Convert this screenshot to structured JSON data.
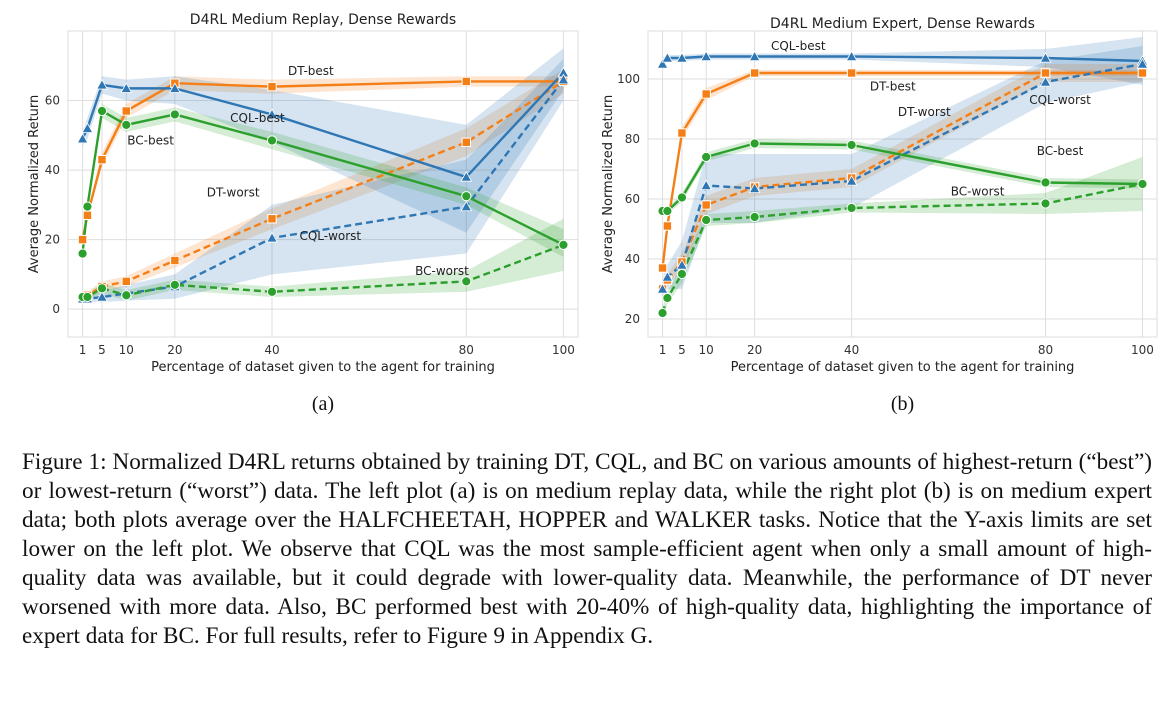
{
  "figure": {
    "caption": "Figure 1: Normalized D4RL returns obtained by training DT, CQL, and BC on various amounts of highest-return (“best”) or lowest-return (“worst”) data. The left plot (a) is on medium replay data, while the right plot (b) is on medium expert data; both plots average over the HALFCHEETAH, HOPPER and WALKER tasks. Notice that the Y-axis limits are set lower on the left plot. We observe that CQL was the most sample-efficient agent when only a small amount of high-quality data was available, but it could degrade with lower-quality data. Meanwhile, the performance of DT never worsened with more data. Also, BC performed best with 20-40% of high-quality data, highlighting the importance of expert data for BC. For full results, refer to Figure 9 in Appendix G."
  },
  "colors": {
    "DT": "#f47f17",
    "CQL": "#2f77b4",
    "BC": "#2ca02c"
  },
  "chart_data": [
    {
      "type": "line",
      "panel_label": "(a)",
      "title": "D4RL Medium Replay, Dense Rewards",
      "xlabel": "Percentage of dataset given to the agent for training",
      "ylabel": "Average Normalized Return",
      "x": [
        1,
        2,
        5,
        10,
        20,
        40,
        80,
        100
      ],
      "xticks": [
        1,
        5,
        10,
        20,
        40,
        80,
        100
      ],
      "yticks": [
        0,
        20,
        40,
        60
      ],
      "xlim": [
        -2,
        103
      ],
      "ylim": [
        -8,
        80
      ],
      "grid": true,
      "series": [
        {
          "name": "DT-best",
          "agent": "DT",
          "dashed": false,
          "marker": "square",
          "values": [
            20,
            27,
            43,
            57,
            65,
            64,
            65.5,
            65.5
          ],
          "lower": [
            19,
            26,
            41,
            55,
            63,
            62,
            64,
            64
          ],
          "upper": [
            21,
            28,
            45,
            59,
            67,
            66,
            67,
            67
          ]
        },
        {
          "name": "DT-worst",
          "agent": "DT",
          "dashed": true,
          "marker": "square",
          "values": [
            3,
            4,
            6.5,
            8,
            14,
            26,
            48,
            65.5
          ],
          "lower": [
            2,
            3,
            5,
            6.5,
            12,
            23,
            44,
            62
          ],
          "upper": [
            4,
            5,
            8,
            9.5,
            16,
            29,
            52,
            69
          ]
        },
        {
          "name": "CQL-best",
          "agent": "CQL",
          "dashed": false,
          "marker": "triangle",
          "values": [
            49,
            52,
            64.5,
            63.5,
            63.5,
            56,
            38,
            68
          ],
          "lower": [
            47,
            49,
            62,
            60,
            59,
            48,
            22,
            63
          ],
          "upper": [
            51,
            55,
            67,
            66,
            67,
            63,
            53,
            75
          ]
        },
        {
          "name": "CQL-worst",
          "agent": "CQL",
          "dashed": true,
          "marker": "triangle",
          "values": [
            3,
            3,
            3.5,
            4.5,
            6.5,
            20.5,
            29.5,
            66
          ],
          "lower": [
            2,
            2,
            2,
            2.5,
            3,
            10,
            16,
            60
          ],
          "upper": [
            4,
            4,
            5,
            7,
            10,
            30,
            43,
            72
          ]
        },
        {
          "name": "BC-best",
          "agent": "BC",
          "dashed": false,
          "marker": "circle",
          "values": [
            16,
            29.5,
            57,
            53,
            56,
            48.5,
            32.5,
            18.5
          ],
          "lower": [
            15,
            28,
            55,
            51,
            54,
            46,
            30,
            15
          ],
          "upper": [
            17,
            31,
            59,
            55,
            58,
            51,
            35,
            23
          ]
        },
        {
          "name": "BC-worst",
          "agent": "BC",
          "dashed": true,
          "marker": "circle",
          "values": [
            3.5,
            3.5,
            6,
            4,
            7,
            5,
            8,
            18.5
          ],
          "lower": [
            2.5,
            2.5,
            4.5,
            2.5,
            5.5,
            3.5,
            5,
            11
          ],
          "upper": [
            4.5,
            4.5,
            7.5,
            5.5,
            8.5,
            6.5,
            11,
            26
          ]
        }
      ],
      "annotations": [
        {
          "text": "DT-best",
          "x": 48,
          "y": 68.5
        },
        {
          "text": "CQL-best",
          "x": 37,
          "y": 55
        },
        {
          "text": "BC-best",
          "x": 15,
          "y": 48.5
        },
        {
          "text": "DT-worst",
          "x": 32,
          "y": 33.5
        },
        {
          "text": "CQL-worst",
          "x": 52,
          "y": 21
        },
        {
          "text": "BC-worst",
          "x": 75,
          "y": 11
        }
      ]
    },
    {
      "type": "line",
      "panel_label": "(b)",
      "title": "D4RL Medium Expert, Dense Rewards",
      "xlabel": "Percentage of dataset given to the agent for training",
      "ylabel": "Average Normalized Return",
      "x": [
        1,
        2,
        5,
        10,
        20,
        40,
        80,
        100
      ],
      "xticks": [
        1,
        5,
        10,
        20,
        40,
        80,
        100
      ],
      "yticks": [
        20,
        40,
        60,
        80,
        100
      ],
      "xlim": [
        -2,
        103
      ],
      "ylim": [
        14,
        116
      ],
      "grid": true,
      "series": [
        {
          "name": "CQL-best",
          "agent": "CQL",
          "dashed": false,
          "marker": "triangle",
          "values": [
            105,
            107,
            107,
            107.5,
            107.5,
            107.5,
            107,
            106
          ],
          "lower": [
            103,
            106,
            106,
            106.5,
            106.5,
            106.5,
            104,
            98
          ],
          "upper": [
            107,
            108,
            108,
            108.5,
            108.5,
            108.5,
            110,
            114
          ]
        },
        {
          "name": "DT-best",
          "agent": "DT",
          "dashed": false,
          "marker": "square",
          "values": [
            37,
            51,
            82,
            95,
            102,
            102,
            102,
            102
          ],
          "lower": [
            35,
            49,
            80,
            93,
            101,
            101,
            101,
            101
          ],
          "upper": [
            39,
            53,
            84,
            97,
            103,
            103,
            103,
            103
          ]
        },
        {
          "name": "DT-worst",
          "agent": "DT",
          "dashed": true,
          "marker": "square",
          "values": [
            30,
            33,
            39,
            58,
            64,
            67,
            102,
            102
          ],
          "lower": [
            28,
            31,
            36,
            55,
            61,
            64,
            99,
            99
          ],
          "upper": [
            32,
            35,
            42,
            61,
            67,
            70,
            105,
            105
          ]
        },
        {
          "name": "CQL-worst",
          "agent": "CQL",
          "dashed": true,
          "marker": "triangle",
          "values": [
            30,
            34,
            38,
            64.5,
            63.5,
            66,
            99,
            105
          ],
          "lower": [
            26,
            30,
            30,
            52,
            52,
            57,
            92,
            99
          ],
          "upper": [
            34,
            38,
            46,
            75,
            75,
            75,
            106,
            111
          ]
        },
        {
          "name": "BC-best",
          "agent": "BC",
          "dashed": false,
          "marker": "circle",
          "values": [
            56,
            56,
            60.5,
            74,
            78.5,
            78,
            65.5,
            65
          ],
          "lower": [
            55,
            55,
            59,
            72.5,
            77,
            76.5,
            64,
            63.5
          ],
          "upper": [
            57,
            57,
            62,
            75.5,
            80,
            79.5,
            67,
            66.5
          ]
        },
        {
          "name": "BC-worst",
          "agent": "BC",
          "dashed": true,
          "marker": "circle",
          "values": [
            22,
            27,
            35,
            53,
            54,
            57,
            58.5,
            65
          ],
          "lower": [
            20,
            25,
            32,
            51,
            52,
            55.5,
            55,
            56
          ],
          "upper": [
            24,
            29,
            38,
            55,
            56,
            58.5,
            62,
            74
          ]
        }
      ],
      "annotations": [
        {
          "text": "CQL-best",
          "x": 29,
          "y": 111
        },
        {
          "text": "DT-best",
          "x": 48.5,
          "y": 97.5
        },
        {
          "text": "DT-worst",
          "x": 55,
          "y": 89
        },
        {
          "text": "CQL-worst",
          "x": 83,
          "y": 93
        },
        {
          "text": "BC-best",
          "x": 83,
          "y": 76
        },
        {
          "text": "BC-worst",
          "x": 66,
          "y": 62.5
        }
      ]
    }
  ]
}
